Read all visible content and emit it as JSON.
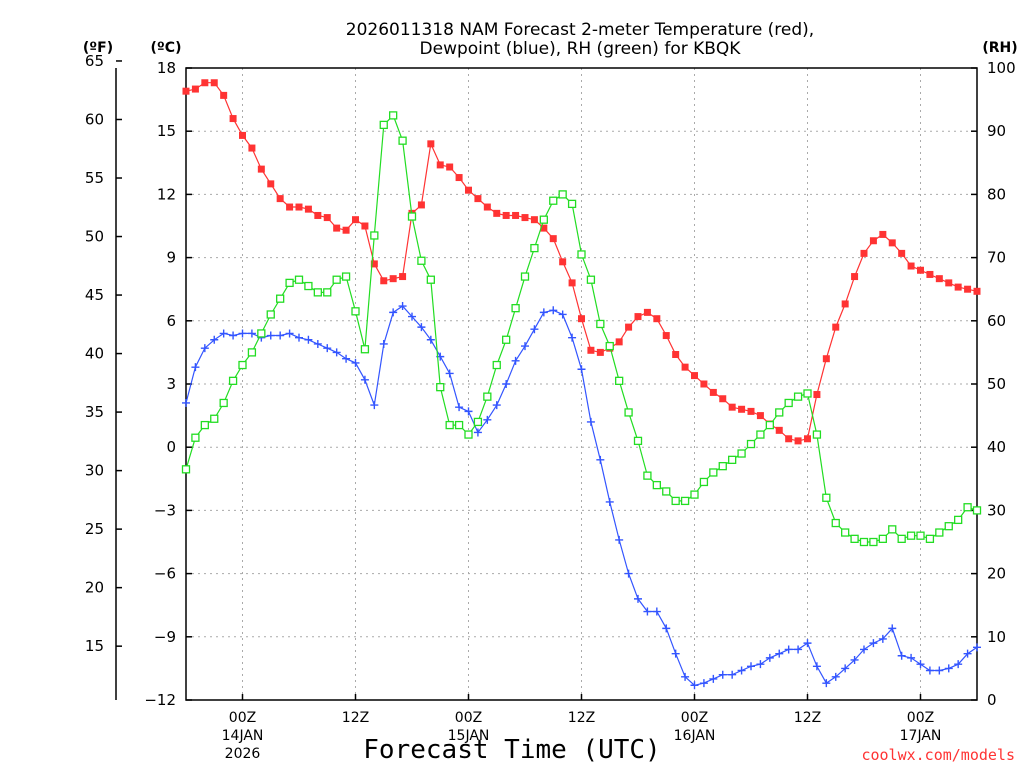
{
  "chart_data": {
    "type": "line",
    "title_line1": "2026011318 NAM Forecast 2-meter Temperature (red),",
    "title_line2": "Dewpoint (blue), RH (green) for KBQK",
    "xlabel": "Forecast Time (UTC)",
    "credit": "coolwx.com/models",
    "units": {
      "fahrenheit": "(ºF)",
      "celsius": "(ºC)",
      "rh": "(RH)"
    },
    "grid": true,
    "x_range_hours": [
      0,
      84
    ],
    "x_ticks": [
      {
        "hour": 6,
        "label": "00Z",
        "sub1": "14JAN",
        "sub2": "2026"
      },
      {
        "hour": 18,
        "label": "12Z",
        "sub1": "",
        "sub2": ""
      },
      {
        "hour": 30,
        "label": "00Z",
        "sub1": "15JAN",
        "sub2": ""
      },
      {
        "hour": 42,
        "label": "12Z",
        "sub1": "",
        "sub2": ""
      },
      {
        "hour": 54,
        "label": "00Z",
        "sub1": "16JAN",
        "sub2": ""
      },
      {
        "hour": 66,
        "label": "12Z",
        "sub1": "",
        "sub2": ""
      },
      {
        "hour": 78,
        "label": "00Z",
        "sub1": "17JAN",
        "sub2": ""
      }
    ],
    "y_celsius": {
      "range": [
        -12,
        18
      ],
      "ticks": [
        18,
        15,
        12,
        9,
        6,
        3,
        0,
        -3,
        -6,
        -9,
        -12
      ],
      "labels": [
        "18",
        "15",
        "12",
        "9",
        "6",
        "3",
        "0",
        "−3",
        "−6",
        "−9",
        "−12"
      ]
    },
    "y_fahrenheit": {
      "ticks": [
        65,
        60,
        55,
        50,
        45,
        40,
        35,
        30,
        25,
        20,
        15
      ],
      "labels": [
        "65",
        "60",
        "55",
        "50",
        "45",
        "40",
        "35",
        "30",
        "25",
        "20",
        "15"
      ]
    },
    "y_rh": {
      "range": [
        0,
        100
      ],
      "ticks": [
        100,
        90,
        80,
        70,
        60,
        50,
        40,
        30,
        20,
        10,
        0
      ],
      "labels": [
        "100",
        "90",
        "80",
        "70",
        "60",
        "50",
        "40",
        "30",
        "20",
        "10",
        "0"
      ]
    },
    "series": [
      {
        "name": "Temperature",
        "unit": "C",
        "color": "#ff3333",
        "marker": "filled-square",
        "values": [
          16.9,
          17.0,
          17.3,
          17.3,
          16.7,
          15.6,
          14.8,
          14.2,
          13.2,
          12.5,
          11.8,
          11.4,
          11.4,
          11.3,
          11.0,
          10.9,
          10.4,
          10.3,
          10.8,
          10.5,
          8.7,
          7.9,
          8.0,
          8.1,
          11.1,
          11.5,
          14.4,
          13.4,
          13.3,
          12.8,
          12.2,
          11.8,
          11.4,
          11.1,
          11.0,
          11.0,
          10.9,
          10.8,
          10.4,
          9.9,
          8.8,
          7.8,
          6.1,
          4.6,
          4.5,
          4.7,
          5.0,
          5.7,
          6.2,
          6.4,
          6.1,
          5.3,
          4.4,
          3.8,
          3.4,
          3.0,
          2.6,
          2.3,
          1.9,
          1.8,
          1.7,
          1.5,
          1.1,
          0.8,
          0.4,
          0.3,
          0.4,
          2.5,
          4.2,
          5.7,
          6.8,
          8.1,
          9.2,
          9.8,
          10.1,
          9.7,
          9.2,
          8.6,
          8.4,
          8.2,
          8.0,
          7.8,
          7.6,
          7.5,
          7.4
        ]
      },
      {
        "name": "Dewpoint",
        "unit": "C",
        "color": "#3355ff",
        "marker": "plus",
        "values": [
          2.1,
          3.8,
          4.7,
          5.1,
          5.4,
          5.3,
          5.4,
          5.4,
          5.2,
          5.3,
          5.3,
          5.4,
          5.2,
          5.1,
          4.9,
          4.7,
          4.5,
          4.2,
          4.0,
          3.2,
          2.0,
          4.9,
          6.4,
          6.7,
          6.2,
          5.7,
          5.1,
          4.3,
          3.5,
          1.9,
          1.7,
          0.7,
          1.3,
          2.0,
          3.0,
          4.1,
          4.8,
          5.6,
          6.4,
          6.5,
          6.3,
          5.2,
          3.7,
          1.2,
          -0.6,
          -2.6,
          -4.4,
          -6.0,
          -7.2,
          -7.8,
          -7.8,
          -8.6,
          -9.8,
          -10.9,
          -11.3,
          -11.2,
          -11.0,
          -10.8,
          -10.8,
          -10.6,
          -10.4,
          -10.3,
          -10.0,
          -9.8,
          -9.6,
          -9.6,
          -9.3,
          -10.4,
          -11.2,
          -10.9,
          -10.5,
          -10.1,
          -9.6,
          -9.3,
          -9.1,
          -8.6,
          -9.9,
          -10.0,
          -10.3,
          -10.6,
          -10.6,
          -10.5,
          -10.3,
          -9.8,
          -9.5
        ]
      },
      {
        "name": "RH",
        "unit": "%",
        "color": "#22dd22",
        "marker": "open-square",
        "values": [
          36.5,
          41.5,
          43.5,
          44.5,
          47.0,
          50.5,
          53.0,
          55.0,
          58.0,
          61.0,
          63.5,
          66.0,
          66.5,
          65.5,
          64.5,
          64.5,
          66.5,
          67.0,
          61.5,
          55.5,
          73.5,
          91.0,
          92.5,
          88.5,
          76.5,
          69.5,
          66.5,
          49.5,
          43.5,
          43.5,
          42.0,
          44.0,
          48.0,
          53.0,
          57.0,
          62.0,
          67.0,
          71.5,
          76.0,
          79.0,
          80.0,
          78.5,
          70.5,
          66.5,
          59.5,
          56.0,
          50.5,
          45.5,
          41.0,
          35.5,
          34.0,
          33.0,
          31.5,
          31.5,
          32.5,
          34.5,
          36.0,
          37.0,
          38.0,
          39.0,
          40.5,
          42.0,
          43.5,
          45.5,
          47.0,
          48.0,
          48.5,
          42.0,
          32.0,
          28.0,
          26.5,
          25.5,
          25.0,
          25.0,
          25.5,
          27.0,
          25.5,
          26.0,
          26.0,
          25.5,
          26.5,
          27.5,
          28.5,
          30.5,
          30.0
        ]
      }
    ]
  }
}
